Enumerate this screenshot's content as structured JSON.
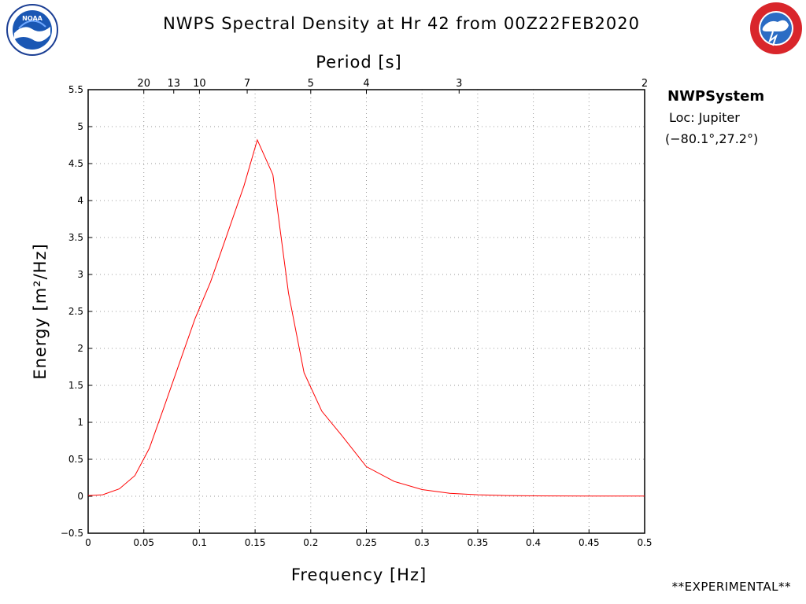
{
  "header": {
    "title": "NWPS Spectral Density at Hr 42 from 00Z22FEB2020",
    "left_logo": "noaa-logo",
    "right_logo": "nws-logo"
  },
  "info": {
    "system": "NWPSystem",
    "location": "Loc: Jupiter",
    "coords": "(−80.1°,27.2°)"
  },
  "footer": {
    "note": "**EXPERIMENTAL**"
  },
  "colors": {
    "series": "#ff0000",
    "grid": "#999999",
    "frame": "#000000"
  },
  "chart_data": {
    "type": "line",
    "title": "NWPS Spectral Density at Hr 42 from 00Z22FEB2020",
    "xlabel": "Frequency [Hz]",
    "ylabel": "Energy [m²/Hz]",
    "x2label": "Period [s]",
    "xlim": [
      0,
      0.5
    ],
    "ylim": [
      -0.5,
      5.5
    ],
    "xticks": [
      0,
      0.05,
      0.1,
      0.15,
      0.2,
      0.25,
      0.3,
      0.35,
      0.4,
      0.45,
      0.5
    ],
    "xtick_labels": [
      "0",
      "0.05",
      "0.1",
      "0.15",
      "0.2",
      "0.25",
      "0.3",
      "0.35",
      "0.4",
      "0.45",
      "0.5"
    ],
    "yticks": [
      -0.5,
      0,
      0.5,
      1,
      1.5,
      2,
      2.5,
      3,
      3.5,
      4,
      4.5,
      5,
      5.5
    ],
    "ytick_labels": [
      "−0.5",
      "0",
      "0.5",
      "1",
      "1.5",
      "2",
      "2.5",
      "3",
      "3.5",
      "4",
      "4.5",
      "5",
      "5.5"
    ],
    "period_ticks": [
      {
        "period": 20,
        "freq": 0.05
      },
      {
        "period": 13,
        "freq": 0.0769
      },
      {
        "period": 10,
        "freq": 0.1
      },
      {
        "period": 7,
        "freq": 0.1429
      },
      {
        "period": 5,
        "freq": 0.2
      },
      {
        "period": 4,
        "freq": 0.25
      },
      {
        "period": 3,
        "freq": 0.3333
      },
      {
        "period": 2,
        "freq": 0.5
      }
    ],
    "grid": true,
    "series": [
      {
        "x": [
          0,
          0.013,
          0.028,
          0.042,
          0.055,
          0.068,
          0.082,
          0.096,
          0.11,
          0.125,
          0.14,
          0.152,
          0.166,
          0.18,
          0.194,
          0.21,
          0.228,
          0.25,
          0.275,
          0.3,
          0.325,
          0.35,
          0.375,
          0.4,
          0.45,
          0.5
        ],
        "y": [
          0.01,
          0.02,
          0.1,
          0.28,
          0.65,
          1.2,
          1.8,
          2.4,
          2.9,
          3.55,
          4.2,
          4.82,
          4.35,
          2.75,
          1.67,
          1.15,
          0.82,
          0.4,
          0.2,
          0.09,
          0.04,
          0.02,
          0.01,
          0.005,
          0.003,
          0.002
        ]
      }
    ]
  }
}
